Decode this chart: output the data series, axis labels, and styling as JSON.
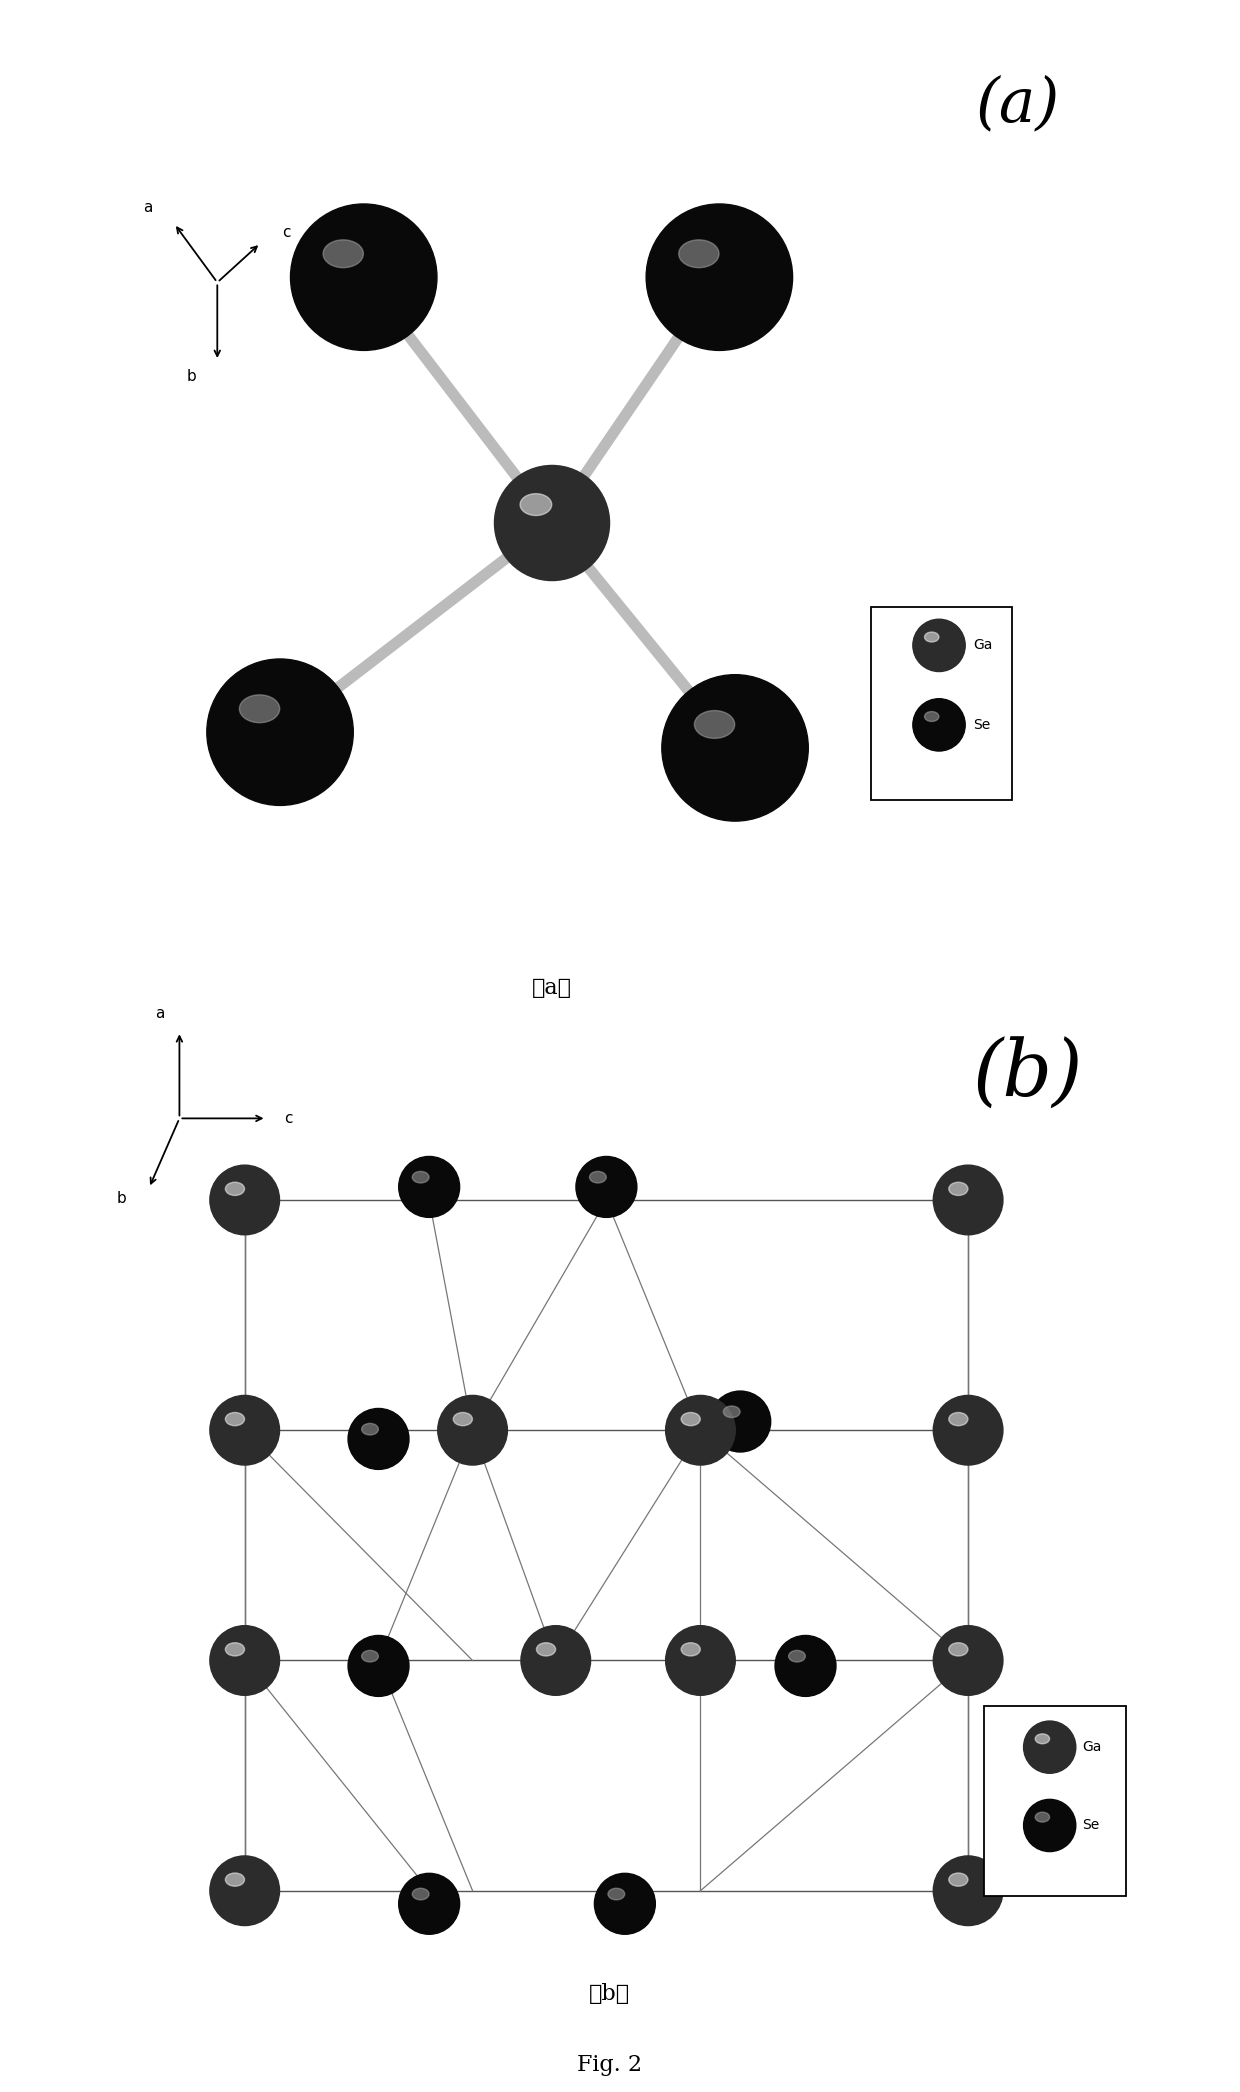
{
  "fig_width": 12.4,
  "fig_height": 20.92,
  "bg_color": "#ffffff",
  "panel_a_label": "(a)",
  "panel_b_label": "(b)",
  "caption_a": "(a)",
  "caption_b": "(b)",
  "fig_caption": "Fig. 2",
  "ga_color": "#b0b0b0",
  "se_color": "#252525",
  "bond_color": "#bbbbbb"
}
